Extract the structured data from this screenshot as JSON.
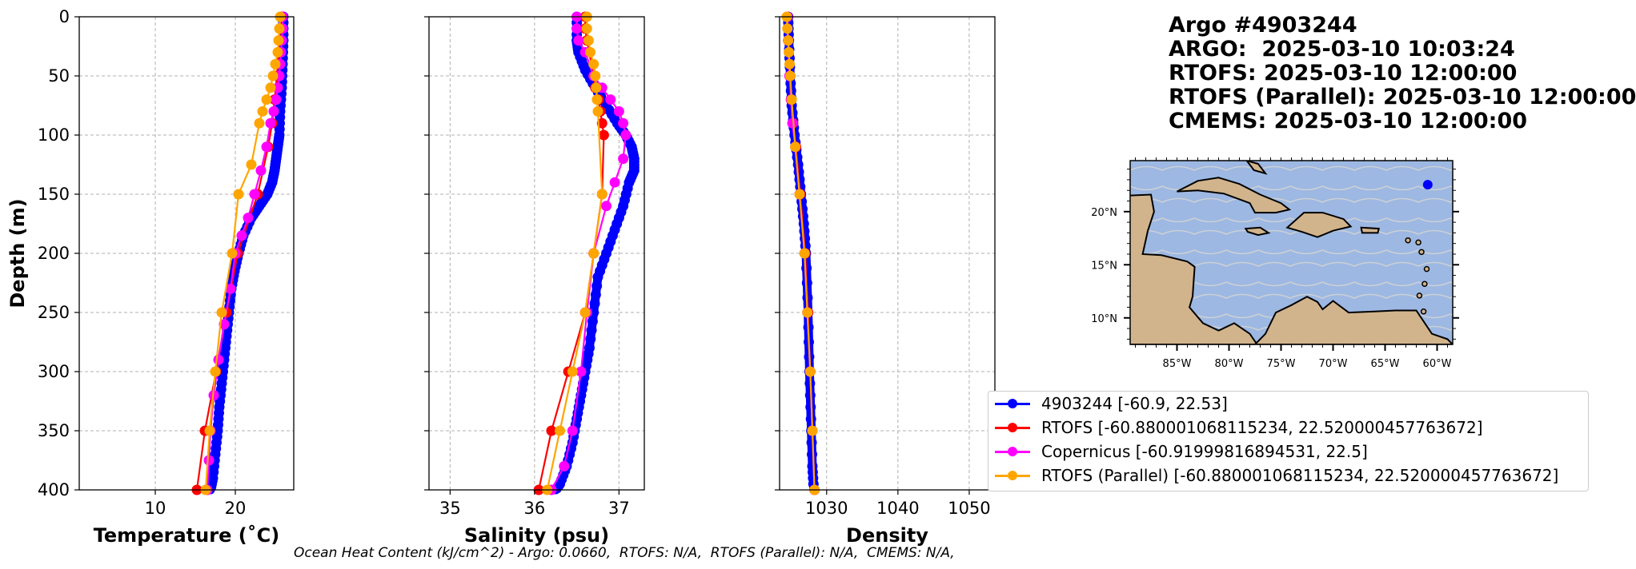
{
  "header": {
    "argo_id": "Argo #4903244",
    "argo_time": "ARGO:  2025-03-10 10:03:24",
    "rtofs_time": "RTOFS: 2025-03-10 12:00:00",
    "rtofs_parallel_time": "RTOFS (Parallel): 2025-03-10 12:00:00",
    "cmems_time": "CMEMS: 2025-03-10 12:00:00"
  },
  "footer": {
    "ohc_text": "Ocean Heat Content (kJ/cm^2) - Argo: 0.0660,  RTOFS: N/A,  RTOFS (Parallel): N/A,  CMEMS: N/A,"
  },
  "legend": [
    {
      "label": "4903244 [-60.9, 22.53]",
      "color": "#0000ff"
    },
    {
      "label": "RTOFS [-60.880001068115234, 22.520000457763672]",
      "color": "#ff0000"
    },
    {
      "label": "Copernicus [-60.91999816894531, 22.5]",
      "color": "#ff00ff"
    },
    {
      "label": "RTOFS (Parallel) [-60.880001068115234, 22.520000457763672]",
      "color": "#ffa500"
    }
  ],
  "chart_data": [
    {
      "type": "line",
      "xlabel": "Temperature (˚C)",
      "ylabel": "Depth (m)",
      "xlim": [
        0.5,
        27.3
      ],
      "ylim": [
        400,
        0
      ],
      "xticks": [
        10,
        20
      ],
      "yticks": [
        0,
        50,
        100,
        150,
        200,
        250,
        300,
        350,
        400
      ],
      "grid": true,
      "series": [
        {
          "name": "4903244 [-60.9, 22.53]",
          "color": "#0000ff",
          "dense": true,
          "x": [
            26.0,
            26.0,
            25.9,
            25.8,
            25.6,
            25.5,
            25.3,
            25.1,
            24.9,
            24.6,
            24.0,
            23.0,
            22.0,
            21.0,
            20.4,
            19.9,
            19.5,
            19.2,
            18.9,
            18.6,
            18.3,
            18.0,
            17.8,
            17.5,
            17.2,
            16.9
          ],
          "y": [
            0,
            20,
            40,
            60,
            80,
            100,
            110,
            120,
            130,
            140,
            150,
            160,
            170,
            185,
            200,
            215,
            230,
            250,
            270,
            290,
            310,
            330,
            350,
            370,
            390,
            400
          ]
        },
        {
          "name": "RTOFS [-60.880001068115234, 22.520000457763672]",
          "color": "#ff0000",
          "x": [
            25.7,
            25.6,
            25.5,
            25.4,
            25.2,
            24.9,
            24.6,
            24.1,
            22.8,
            20.3,
            18.9,
            17.6,
            16.2,
            15.2
          ],
          "y": [
            0,
            10,
            20,
            30,
            50,
            70,
            90,
            110,
            150,
            200,
            250,
            300,
            350,
            400
          ]
        },
        {
          "name": "Copernicus [-60.91999816894531, 22.5]",
          "color": "#ff00ff",
          "x": [
            25.9,
            25.9,
            25.8,
            25.7,
            25.6,
            25.5,
            25.3,
            25.1,
            24.8,
            24.4,
            23.9,
            23.2,
            22.4,
            21.6,
            20.8,
            20.0,
            19.4,
            18.6,
            17.9,
            17.3,
            16.9,
            16.7,
            16.5
          ],
          "y": [
            0,
            10,
            20,
            30,
            40,
            50,
            60,
            70,
            80,
            90,
            110,
            130,
            150,
            170,
            185,
            200,
            230,
            260,
            290,
            320,
            350,
            375,
            400
          ]
        },
        {
          "name": "RTOFS (Parallel) [-60.880001068115234, 22.520000457763672]",
          "color": "#ffa500",
          "x": [
            25.6,
            25.5,
            25.4,
            25.3,
            25.0,
            24.7,
            24.4,
            23.9,
            23.4,
            23.0,
            22.0,
            20.4,
            19.6,
            18.3,
            17.5,
            16.8,
            16.3
          ],
          "y": [
            0,
            10,
            20,
            30,
            40,
            50,
            60,
            70,
            80,
            90,
            125,
            150,
            200,
            250,
            300,
            350,
            400
          ]
        }
      ]
    },
    {
      "type": "line",
      "xlabel": "Salinity (psu)",
      "ylabel": "",
      "xlim": [
        34.75,
        37.3
      ],
      "ylim": [
        400,
        0
      ],
      "xticks": [
        35,
        36,
        37
      ],
      "yticks": [
        0,
        50,
        100,
        150,
        200,
        250,
        300,
        350,
        400
      ],
      "grid": true,
      "series": [
        {
          "name": "4903244 [-60.9, 22.53]",
          "color": "#0000ff",
          "dense": true,
          "x": [
            36.5,
            36.5,
            36.52,
            36.6,
            36.72,
            36.85,
            36.98,
            37.08,
            37.15,
            37.18,
            37.18,
            37.12,
            37.05,
            36.95,
            36.85,
            36.75,
            36.7,
            36.65,
            36.6,
            36.55,
            36.5,
            36.45,
            36.38,
            36.3,
            36.25
          ],
          "y": [
            0,
            20,
            30,
            45,
            60,
            75,
            90,
            100,
            110,
            120,
            130,
            140,
            160,
            180,
            200,
            220,
            250,
            280,
            300,
            320,
            340,
            360,
            380,
            395,
            400
          ]
        },
        {
          "name": "RTOFS [-60.880001068115234, 22.520000457763672]",
          "color": "#ff0000",
          "x": [
            36.6,
            36.6,
            36.62,
            36.7,
            36.72,
            36.76,
            36.78,
            36.8,
            36.82,
            36.8,
            36.7,
            36.6,
            36.4,
            36.2,
            36.05
          ],
          "y": [
            0,
            10,
            20,
            50,
            60,
            70,
            80,
            90,
            100,
            150,
            200,
            250,
            300,
            350,
            400
          ]
        },
        {
          "name": "Copernicus [-60.91999816894531, 22.5]",
          "color": "#ff00ff",
          "x": [
            36.5,
            36.5,
            36.52,
            36.6,
            36.7,
            36.8,
            36.9,
            37.0,
            37.05,
            37.08,
            37.05,
            36.95,
            36.85,
            36.7,
            36.62,
            36.55,
            36.45,
            36.35,
            36.2
          ],
          "y": [
            0,
            10,
            20,
            30,
            50,
            60,
            70,
            80,
            90,
            100,
            120,
            140,
            160,
            200,
            250,
            300,
            350,
            380,
            400
          ]
        },
        {
          "name": "RTOFS (Parallel) [-60.880001068115234, 22.520000457763672]",
          "color": "#ffa500",
          "x": [
            36.62,
            36.62,
            36.64,
            36.66,
            36.7,
            36.72,
            36.73,
            36.74,
            36.75,
            36.8,
            36.7,
            36.6,
            36.45,
            36.3,
            36.15
          ],
          "y": [
            0,
            10,
            20,
            30,
            40,
            50,
            60,
            70,
            80,
            150,
            200,
            250,
            300,
            350,
            400
          ]
        }
      ]
    },
    {
      "type": "line",
      "xlabel": "Density",
      "ylabel": "",
      "xlim": [
        1023.4,
        1053.6
      ],
      "ylim": [
        400,
        0
      ],
      "xticks": [
        1030,
        1040,
        1050
      ],
      "yticks": [
        0,
        50,
        100,
        150,
        200,
        250,
        300,
        350,
        400
      ],
      "grid": true,
      "series": [
        {
          "name": "4903244 [-60.9, 22.53]",
          "color": "#0000ff",
          "dense": true,
          "x": [
            1024.6,
            1024.7,
            1024.9,
            1025.1,
            1025.5,
            1026.0,
            1026.4,
            1026.8,
            1027.1,
            1027.4,
            1027.6,
            1027.8,
            1028.0,
            1028.2
          ],
          "y": [
            0,
            20,
            50,
            75,
            100,
            125,
            150,
            175,
            200,
            250,
            300,
            340,
            380,
            400
          ]
        },
        {
          "name": "RTOFS [-60.880001068115234, 22.520000457763672]",
          "color": "#ff0000",
          "x": [
            1024.5,
            1024.6,
            1024.8,
            1025.0,
            1025.3,
            1025.7,
            1026.3,
            1027.0,
            1027.4,
            1027.7,
            1028.0,
            1028.3
          ],
          "y": [
            0,
            20,
            50,
            70,
            90,
            110,
            150,
            200,
            250,
            300,
            350,
            400
          ]
        },
        {
          "name": "Copernicus [-60.91999816894531, 22.5]",
          "color": "#ff00ff",
          "x": [
            1024.5,
            1024.6,
            1024.8,
            1025.0,
            1025.2,
            1025.6,
            1026.2,
            1026.9,
            1027.3,
            1027.7,
            1028.0,
            1028.3
          ],
          "y": [
            0,
            20,
            50,
            70,
            90,
            110,
            150,
            200,
            250,
            300,
            350,
            400
          ]
        },
        {
          "name": "RTOFS (Parallel) [-60.880001068115234, 22.520000457763672]",
          "color": "#ffa500",
          "x": [
            1024.4,
            1024.5,
            1024.6,
            1024.7,
            1024.8,
            1024.9,
            1025.1,
            1025.6,
            1026.2,
            1026.9,
            1027.3,
            1027.7,
            1028.0,
            1028.3
          ],
          "y": [
            0,
            10,
            20,
            30,
            40,
            50,
            70,
            110,
            150,
            200,
            250,
            300,
            350,
            400
          ]
        }
      ]
    }
  ],
  "map": {
    "lon_range": [
      -89.5,
      -58.5
    ],
    "lat_range": [
      7.5,
      24.8
    ],
    "x_tick_labels": [
      "85°W",
      "80°W",
      "75°W",
      "70°W",
      "65°W",
      "60°W"
    ],
    "y_tick_labels": [
      "10°N",
      "15°N",
      "20°N"
    ],
    "float_position": {
      "lon": -60.9,
      "lat": 22.53
    },
    "ocean_color": "#9db8e2",
    "land_color": "#d2b48c",
    "stream_color": "#d3d3d3"
  }
}
